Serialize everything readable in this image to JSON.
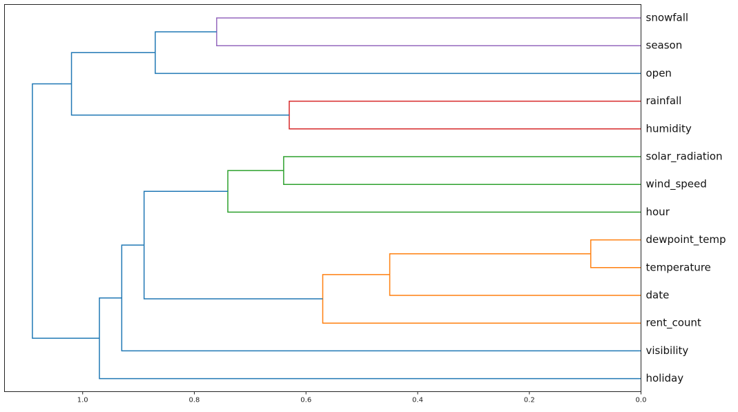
{
  "chart_data": {
    "type": "dendrogram",
    "orientation": "left",
    "title": "",
    "xlabel": "",
    "ylabel": "",
    "xlim": [
      1.14,
      0.0
    ],
    "x_ticks": [
      1.0,
      0.8,
      0.6,
      0.4,
      0.2,
      0.0
    ],
    "x_tick_labels": [
      "1.0",
      "0.8",
      "0.6",
      "0.4",
      "0.2",
      "0.0"
    ],
    "leaves": [
      "snowfall",
      "season",
      "open",
      "rainfall",
      "humidity",
      "solar_radiation",
      "wind_speed",
      "hour",
      "dewpoint_temp",
      "temperature",
      "date",
      "rent_count",
      "visibility",
      "holiday"
    ],
    "colors": {
      "default": "#1f77b4",
      "orange": "#ff7f0e",
      "green": "#2ca02c",
      "red": "#d62728",
      "purple": "#9467bd"
    },
    "merges": [
      {
        "id": "c_dt",
        "left": "dewpoint_temp",
        "right": "temperature",
        "distance": 0.09,
        "color": "orange"
      },
      {
        "id": "c_dtd",
        "left": "c_dt",
        "right": "date",
        "distance": 0.45,
        "color": "orange"
      },
      {
        "id": "c_orange",
        "left": "c_dtd",
        "right": "rent_count",
        "distance": 0.57,
        "color": "orange"
      },
      {
        "id": "c_rh",
        "left": "rainfall",
        "right": "humidity",
        "distance": 0.63,
        "color": "red"
      },
      {
        "id": "c_sw",
        "left": "solar_radiation",
        "right": "wind_speed",
        "distance": 0.64,
        "color": "green"
      },
      {
        "id": "c_green",
        "left": "c_sw",
        "right": "hour",
        "distance": 0.74,
        "color": "green"
      },
      {
        "id": "c_ss",
        "left": "snowfall",
        "right": "season",
        "distance": 0.76,
        "color": "purple"
      },
      {
        "id": "c_sso",
        "left": "c_ss",
        "right": "open",
        "distance": 0.87,
        "color": "default"
      },
      {
        "id": "c_go",
        "left": "c_green",
        "right": "c_orange",
        "distance": 0.89,
        "color": "default"
      },
      {
        "id": "c_gov",
        "left": "c_go",
        "right": "visibility",
        "distance": 0.93,
        "color": "default"
      },
      {
        "id": "c_lower",
        "left": "c_gov",
        "right": "holiday",
        "distance": 0.97,
        "color": "default"
      },
      {
        "id": "c_upper",
        "left": "c_sso",
        "right": "c_rh",
        "distance": 1.02,
        "color": "default"
      },
      {
        "id": "c_root",
        "left": "c_upper",
        "right": "c_lower",
        "distance": 1.09,
        "color": "default"
      }
    ]
  }
}
